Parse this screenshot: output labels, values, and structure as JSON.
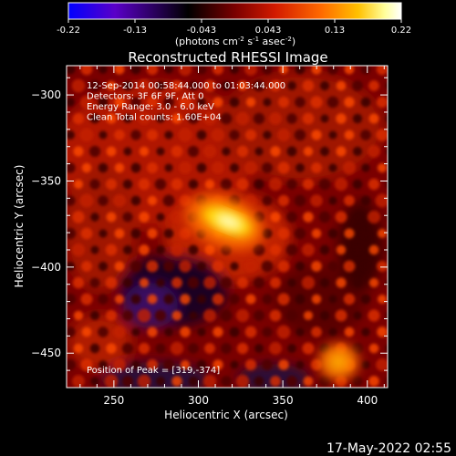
{
  "colorbar": {
    "tick_labels": [
      "-0.22",
      "-0.13",
      "-0.043",
      "0.043",
      "0.13",
      "0.22"
    ],
    "range": [
      -0.22,
      0.22
    ],
    "unit_label": {
      "prefix": "(photons cm",
      "exp1": "-2",
      "mid1": " s",
      "exp2": "-1",
      "mid2": " asec",
      "exp3": "-2",
      "suffix": ")"
    },
    "gradient_colors": [
      "#0000ff",
      "#5a00c8",
      "#000000",
      "#7a0000",
      "#d21a00",
      "#ff6a00",
      "#ffc000",
      "#ffff9a",
      "#ffffff"
    ]
  },
  "chart_data": {
    "type": "heatmap",
    "title": "Reconstructed RHESSI Image",
    "xlabel": "Heliocentric X (arcsec)",
    "ylabel": "Heliocentric Y (arcsec)",
    "xlim": [
      222,
      412
    ],
    "ylim": [
      -470,
      -283
    ],
    "x_ticks": [
      250,
      300,
      350,
      400
    ],
    "y_ticks": [
      -300,
      -350,
      -400,
      -450
    ],
    "x_tick_labels": [
      "250",
      "300",
      "350",
      "400"
    ],
    "y_tick_labels": [
      "−300",
      "−350",
      "−400",
      "−450"
    ],
    "annotations": [
      "12-Sep-2014 00:58:44.000 to 01:03:44.000",
      "Detectors: 3F 6F 9F, Att 0",
      "Energy Range: 3.0 - 6.0 keV",
      "Clean     Total counts: 1.60E+04"
    ],
    "peak_label": "Position of Peak = [319,-374]",
    "peak": [
      319,
      -374
    ],
    "secondary_source": [
      383,
      -455
    ]
  },
  "footer": {
    "timestamp": "17-May-2022 02:55"
  }
}
